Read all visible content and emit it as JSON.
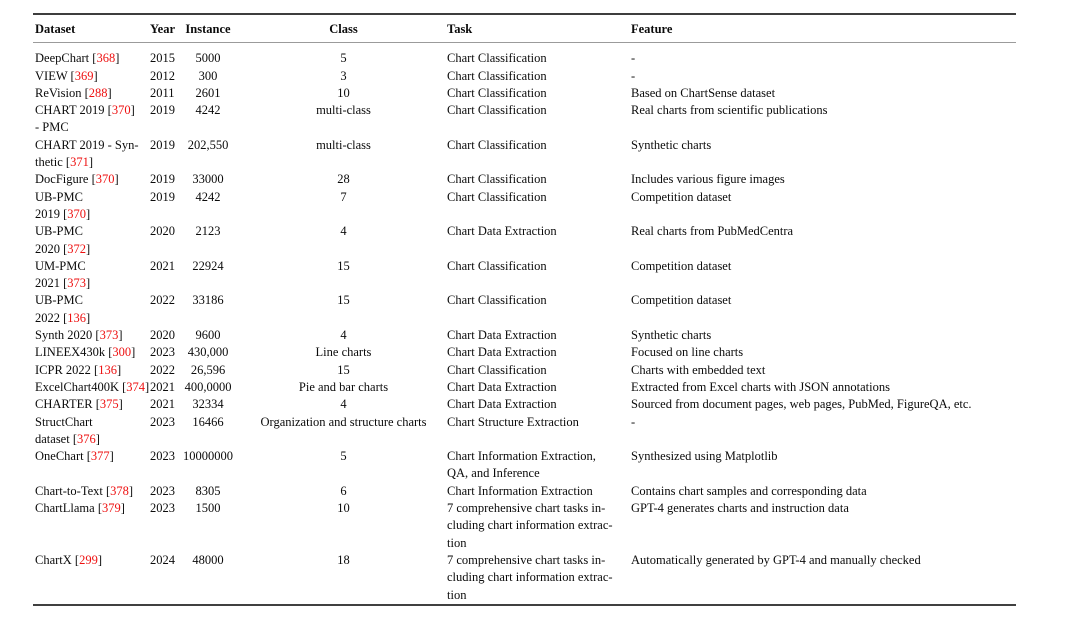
{
  "table": {
    "citation_color": "#ee1111",
    "columns": [
      {
        "key": "dataset",
        "label": "Dataset",
        "align": "left"
      },
      {
        "key": "year",
        "label": "Year",
        "align": "left"
      },
      {
        "key": "instance",
        "label": "Instance",
        "align": "center"
      },
      {
        "key": "class",
        "label": "Class",
        "align": "center"
      },
      {
        "key": "task",
        "label": "Task",
        "align": "left"
      },
      {
        "key": "feature",
        "label": "Feature",
        "align": "left"
      }
    ],
    "rows": [
      {
        "dataset": "DeepChart [368]",
        "year": "2015",
        "instance": "5000",
        "class": "5",
        "task": "Chart Classification",
        "feature": "-"
      },
      {
        "dataset": "VIEW [369]",
        "year": "2012",
        "instance": "300",
        "class": "3",
        "task": "Chart Classification",
        "feature": "-"
      },
      {
        "dataset": "ReVision [288]",
        "year": "2011",
        "instance": "2601",
        "class": "10",
        "task": "Chart Classification",
        "feature": "Based on ChartSense dataset"
      },
      {
        "dataset": "CHART 2019 [370]\n- PMC",
        "year": "2019",
        "instance": "4242",
        "class": "multi-class",
        "task": "Chart Classification",
        "feature": "Real charts from scientific publications"
      },
      {
        "dataset": "CHART 2019 - Syn-\nthetic [371]",
        "year": "2019",
        "instance": "202,550",
        "class": "multi-class",
        "task": "Chart Classification",
        "feature": "Synthetic charts"
      },
      {
        "dataset": "DocFigure [370]",
        "year": "2019",
        "instance": "33000",
        "class": "28",
        "task": "Chart Classification",
        "feature": "Includes various figure images"
      },
      {
        "dataset": "UB-PMC\n2019 [370]",
        "year": "2019",
        "instance": "4242",
        "class": "7",
        "task": "Chart Classification",
        "feature": "Competition dataset"
      },
      {
        "dataset": "UB-PMC\n2020 [372]",
        "year": "2020",
        "instance": "2123",
        "class": "4",
        "task": "Chart Data Extraction",
        "feature": "Real charts from PubMedCentra"
      },
      {
        "dataset": "UM-PMC\n2021 [373]",
        "year": "2021",
        "instance": "22924",
        "class": "15",
        "task": "Chart Classification",
        "feature": "Competition dataset"
      },
      {
        "dataset": "UB-PMC\n2022 [136]",
        "year": "2022",
        "instance": "33186",
        "class": "15",
        "task": "Chart Classification",
        "feature": "Competition dataset"
      },
      {
        "dataset": "Synth 2020 [373]",
        "year": "2020",
        "instance": "9600",
        "class": "4",
        "task": "Chart Data Extraction",
        "feature": "Synthetic charts"
      },
      {
        "dataset": "LINEEX430k [300]",
        "year": "2023",
        "instance": "430,000",
        "class": "Line charts",
        "task": "Chart Data Extraction",
        "feature": "Focused on line charts"
      },
      {
        "dataset": "ICPR 2022 [136]",
        "year": "2022",
        "instance": "26,596",
        "class": "15",
        "task": "Chart Classification",
        "feature": "Charts with embedded text"
      },
      {
        "dataset": "ExcelChart400K [374]",
        "year": "2021",
        "instance": "400,0000",
        "class": "Pie and bar charts",
        "task": "Chart Data Extraction",
        "feature": "Extracted from Excel charts with JSON annotations"
      },
      {
        "dataset": "CHARTER [375]",
        "year": "2021",
        "instance": "32334",
        "class": "4",
        "task": "Chart Data Extraction",
        "feature": "Sourced from document pages, web pages, PubMed, FigureQA, etc."
      },
      {
        "dataset": "StructChart\ndataset [376]",
        "year": "2023",
        "instance": "16466",
        "class": "Organization and structure charts",
        "task": "Chart Structure Extraction",
        "feature": "-"
      },
      {
        "dataset": "OneChart [377]",
        "year": "2023",
        "instance": "10000000",
        "class": "5",
        "task": "Chart Information Extraction,\nQA, and Inference",
        "feature": "Synthesized using Matplotlib"
      },
      {
        "dataset": "Chart-to-Text [378]",
        "year": "2023",
        "instance": "8305",
        "class": "6",
        "task": "Chart Information Extraction",
        "feature": "Contains chart samples and corresponding data"
      },
      {
        "dataset": "ChartLlama [379]",
        "year": "2023",
        "instance": "1500",
        "class": "10",
        "task": "7 comprehensive chart tasks in-\ncluding chart information extrac-\ntion",
        "feature": "GPT-4 generates charts and instruction data"
      },
      {
        "dataset": "ChartX [299]",
        "year": "2024",
        "instance": "48000",
        "class": "18",
        "task": "7 comprehensive chart tasks in-\ncluding chart information extrac-\ntion",
        "feature": "Automatically generated by GPT-4 and manually checked"
      }
    ]
  }
}
